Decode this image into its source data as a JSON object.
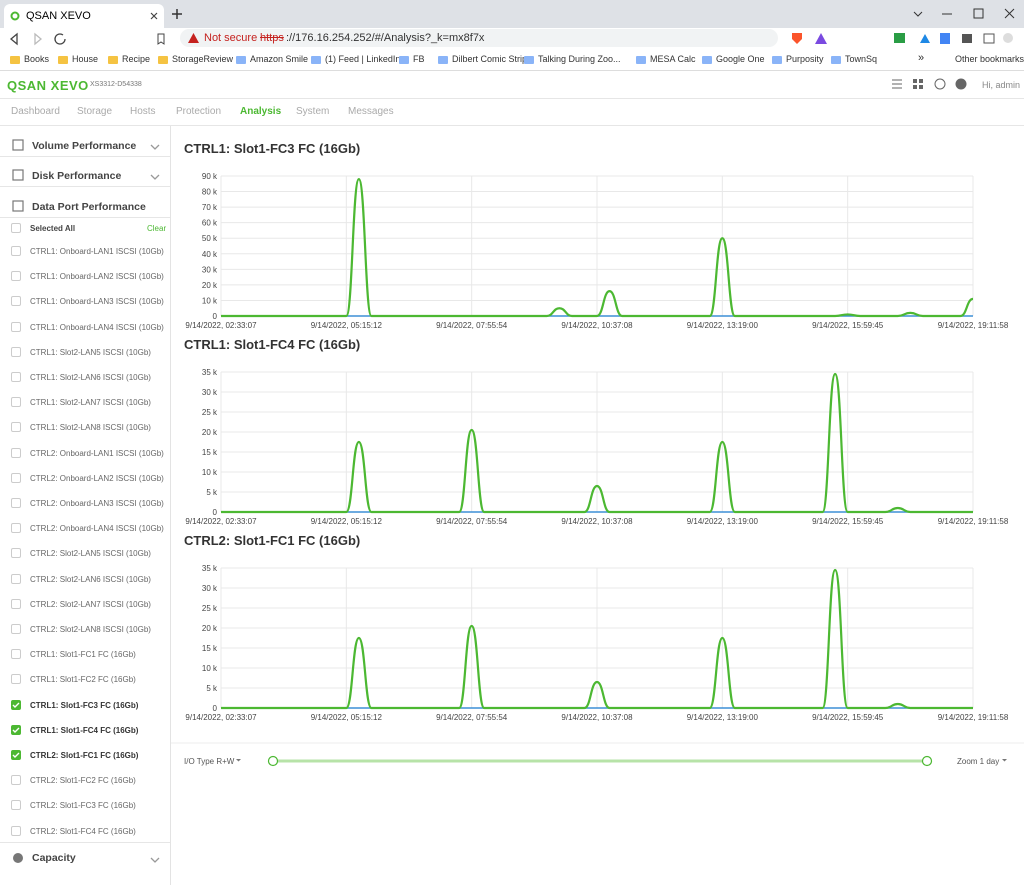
{
  "browser": {
    "tab_title": "QSAN XEVO",
    "not_secure": "Not secure",
    "url_scheme": "https",
    "url_rest": "://176.16.254.252/#/Analysis?_k=mx8f7x",
    "bookmarks": [
      "Books",
      "House",
      "Recipe",
      "StorageReview",
      "Amazon Smile",
      "(1) Feed | LinkedIn",
      "FB",
      "Dilbert Comic Strip...",
      "Talking During Zoo...",
      "MESA Calc",
      "Google One",
      "Purposity",
      "TownSq"
    ],
    "more": "»",
    "other_bookmarks": "Other bookmarks"
  },
  "app": {
    "logo": "QSAN XEVO",
    "model": "XS3312-D54338",
    "user": "Hi, admin",
    "nav": [
      "Dashboard",
      "Storage",
      "Hosts",
      "Protection",
      "Analysis",
      "System",
      "Messages"
    ],
    "active_nav": 4
  },
  "sidebar": {
    "sections": [
      "Volume Performance",
      "Disk Performance",
      "Data Port Performance"
    ],
    "select_all": "Selected All",
    "clear": "Clear",
    "items": [
      {
        "label": "CTRL1: Onboard-LAN1 ISCSI (10Gb)",
        "checked": false
      },
      {
        "label": "CTRL1: Onboard-LAN2 ISCSI (10Gb)",
        "checked": false
      },
      {
        "label": "CTRL1: Onboard-LAN3 ISCSI (10Gb)",
        "checked": false
      },
      {
        "label": "CTRL1: Onboard-LAN4 ISCSI (10Gb)",
        "checked": false
      },
      {
        "label": "CTRL1: Slot2-LAN5 ISCSI (10Gb)",
        "checked": false
      },
      {
        "label": "CTRL1: Slot2-LAN6 ISCSI (10Gb)",
        "checked": false
      },
      {
        "label": "CTRL1: Slot2-LAN7 ISCSI (10Gb)",
        "checked": false
      },
      {
        "label": "CTRL1: Slot2-LAN8 ISCSI (10Gb)",
        "checked": false
      },
      {
        "label": "CTRL2: Onboard-LAN1 ISCSI (10Gb)",
        "checked": false
      },
      {
        "label": "CTRL2: Onboard-LAN2 ISCSI (10Gb)",
        "checked": false
      },
      {
        "label": "CTRL2: Onboard-LAN3 ISCSI (10Gb)",
        "checked": false
      },
      {
        "label": "CTRL2: Onboard-LAN4 ISCSI (10Gb)",
        "checked": false
      },
      {
        "label": "CTRL2: Slot2-LAN5 ISCSI (10Gb)",
        "checked": false
      },
      {
        "label": "CTRL2: Slot2-LAN6 ISCSI (10Gb)",
        "checked": false
      },
      {
        "label": "CTRL2: Slot2-LAN7 ISCSI (10Gb)",
        "checked": false
      },
      {
        "label": "CTRL2: Slot2-LAN8 ISCSI (10Gb)",
        "checked": false
      },
      {
        "label": "CTRL1: Slot1-FC1 FC (16Gb)",
        "checked": false
      },
      {
        "label": "CTRL1: Slot1-FC2 FC (16Gb)",
        "checked": false
      },
      {
        "label": "CTRL1: Slot1-FC3 FC (16Gb)",
        "checked": true
      },
      {
        "label": "CTRL1: Slot1-FC4 FC (16Gb)",
        "checked": true
      },
      {
        "label": "CTRL2: Slot1-FC1 FC (16Gb)",
        "checked": true
      },
      {
        "label": "CTRL2: Slot1-FC2 FC (16Gb)",
        "checked": false
      },
      {
        "label": "CTRL2: Slot1-FC3 FC (16Gb)",
        "checked": false
      },
      {
        "label": "CTRL2: Slot1-FC4 FC (16Gb)",
        "checked": false
      }
    ],
    "capacity": "Capacity"
  },
  "controls": {
    "io_type": "I/O Type R+W",
    "zoom": "Zoom 1 day"
  },
  "chart_data": [
    {
      "type": "line",
      "title": "CTRL1: Slot1-FC3 FC (16Gb)",
      "categories": [
        "9/14/2022, 02:33:07",
        null,
        null,
        null,
        null,
        null,
        null,
        null,
        null,
        null,
        "9/14/2022, 05:15:12",
        null,
        null,
        null,
        null,
        null,
        null,
        null,
        null,
        null,
        "9/14/2022, 07:55:54",
        null,
        null,
        null,
        null,
        null,
        null,
        null,
        null,
        null,
        "9/14/2022, 10:37:08",
        null,
        null,
        null,
        null,
        null,
        null,
        null,
        null,
        null,
        "9/14/2022, 13:19:00",
        null,
        null,
        null,
        null,
        null,
        null,
        null,
        null,
        null,
        "9/14/2022, 15:59:45",
        null,
        null,
        null,
        null,
        null,
        null,
        null,
        null,
        null,
        "9/14/2022, 19:11:58"
      ],
      "series": [
        {
          "color": "#4cb832",
          "values": [
            0,
            0,
            0,
            0,
            0,
            0,
            0,
            0,
            0,
            0,
            0,
            88000,
            0,
            0,
            0,
            0,
            0,
            0,
            0,
            0,
            0,
            0,
            0,
            0,
            0,
            0,
            0,
            5000,
            0,
            0,
            0,
            16000,
            0,
            0,
            0,
            0,
            0,
            0,
            0,
            0,
            50000,
            0,
            0,
            0,
            0,
            0,
            0,
            0,
            0,
            0,
            1000,
            0,
            0,
            0,
            0,
            2000,
            0,
            0,
            0,
            0,
            11000
          ]
        },
        {
          "color": "#3d8fd6",
          "values": [
            0,
            0,
            0,
            0,
            0,
            0,
            0,
            0,
            0,
            0,
            0,
            0,
            0,
            0,
            0,
            0,
            0,
            0,
            0,
            0,
            0,
            0,
            0,
            0,
            0,
            0,
            0,
            0,
            0,
            0,
            0,
            0,
            0,
            0,
            0,
            0,
            0,
            0,
            0,
            0,
            0,
            0,
            0,
            0,
            0,
            0,
            0,
            0,
            0,
            0,
            0,
            0,
            0,
            0,
            0,
            0,
            0,
            0,
            0,
            0,
            0
          ]
        }
      ],
      "ylim": [
        0,
        90000
      ],
      "yticks": [
        0,
        {
          "value": 10000,
          "label": "10 k"
        },
        {
          "value": 20000,
          "label": "20 k"
        },
        {
          "value": 30000,
          "label": "30 k"
        },
        {
          "value": 40000,
          "label": "40 k"
        },
        {
          "value": 50000,
          "label": "50 k"
        },
        {
          "value": 60000,
          "label": "60 k"
        },
        {
          "value": 70000,
          "label": "70 k"
        },
        {
          "value": 80000,
          "label": "80 k"
        },
        {
          "value": 90000,
          "label": "90 k"
        }
      ],
      "grid": true
    },
    {
      "type": "line",
      "title": "CTRL1: Slot1-FC4 FC (16Gb)",
      "categories": [
        "9/14/2022, 02:33:07",
        null,
        null,
        null,
        null,
        null,
        null,
        null,
        null,
        null,
        "9/14/2022, 05:15:12",
        null,
        null,
        null,
        null,
        null,
        null,
        null,
        null,
        null,
        "9/14/2022, 07:55:54",
        null,
        null,
        null,
        null,
        null,
        null,
        null,
        null,
        null,
        "9/14/2022, 10:37:08",
        null,
        null,
        null,
        null,
        null,
        null,
        null,
        null,
        null,
        "9/14/2022, 13:19:00",
        null,
        null,
        null,
        null,
        null,
        null,
        null,
        null,
        null,
        "9/14/2022, 15:59:45",
        null,
        null,
        null,
        null,
        null,
        null,
        null,
        null,
        null,
        "9/14/2022, 19:11:58"
      ],
      "series": [
        {
          "color": "#4cb832",
          "values": [
            0,
            0,
            0,
            0,
            0,
            0,
            0,
            0,
            0,
            0,
            0,
            17500,
            0,
            0,
            0,
            0,
            0,
            0,
            0,
            0,
            20500,
            0,
            0,
            0,
            0,
            0,
            0,
            0,
            0,
            0,
            6500,
            0,
            0,
            0,
            0,
            0,
            0,
            0,
            0,
            0,
            17500,
            0,
            0,
            0,
            0,
            0,
            0,
            0,
            0,
            34500,
            0,
            0,
            0,
            0,
            1000,
            0,
            0,
            0,
            0,
            0,
            0
          ]
        },
        {
          "color": "#3d8fd6",
          "values": [
            0,
            0,
            0,
            0,
            0,
            0,
            0,
            0,
            0,
            0,
            0,
            0,
            0,
            0,
            0,
            0,
            0,
            0,
            0,
            0,
            0,
            0,
            0,
            0,
            0,
            0,
            0,
            0,
            0,
            0,
            0,
            0,
            0,
            0,
            0,
            0,
            0,
            0,
            0,
            0,
            0,
            0,
            0,
            0,
            0,
            0,
            0,
            0,
            0,
            0,
            0,
            0,
            0,
            0,
            0,
            0,
            0,
            0,
            0,
            0,
            0
          ]
        }
      ],
      "ylim": [
        0,
        35000
      ],
      "yticks": [
        0,
        {
          "value": 5000,
          "label": "5 k"
        },
        {
          "value": 10000,
          "label": "10 k"
        },
        {
          "value": 15000,
          "label": "15 k"
        },
        {
          "value": 20000,
          "label": "20 k"
        },
        {
          "value": 25000,
          "label": "25 k"
        },
        {
          "value": 30000,
          "label": "30 k"
        },
        {
          "value": 35000,
          "label": "35 k"
        }
      ],
      "grid": true
    },
    {
      "type": "line",
      "title": "CTRL2: Slot1-FC1 FC (16Gb)",
      "categories": [
        "9/14/2022, 02:33:07",
        null,
        null,
        null,
        null,
        null,
        null,
        null,
        null,
        null,
        "9/14/2022, 05:15:12",
        null,
        null,
        null,
        null,
        null,
        null,
        null,
        null,
        null,
        "9/14/2022, 07:55:54",
        null,
        null,
        null,
        null,
        null,
        null,
        null,
        null,
        null,
        "9/14/2022, 10:37:08",
        null,
        null,
        null,
        null,
        null,
        null,
        null,
        null,
        null,
        "9/14/2022, 13:19:00",
        null,
        null,
        null,
        null,
        null,
        null,
        null,
        null,
        null,
        "9/14/2022, 15:59:45",
        null,
        null,
        null,
        null,
        null,
        null,
        null,
        null,
        null,
        "9/14/2022, 19:11:58"
      ],
      "series": [
        {
          "color": "#4cb832",
          "values": [
            0,
            0,
            0,
            0,
            0,
            0,
            0,
            0,
            0,
            0,
            0,
            17500,
            0,
            0,
            0,
            0,
            0,
            0,
            0,
            0,
            20500,
            0,
            0,
            0,
            0,
            0,
            0,
            0,
            0,
            0,
            6500,
            0,
            0,
            0,
            0,
            0,
            0,
            0,
            0,
            0,
            17500,
            0,
            0,
            0,
            0,
            0,
            0,
            0,
            0,
            34500,
            0,
            0,
            0,
            0,
            1000,
            0,
            0,
            0,
            0,
            0,
            0
          ]
        },
        {
          "color": "#3d8fd6",
          "values": [
            0,
            0,
            0,
            0,
            0,
            0,
            0,
            0,
            0,
            0,
            0,
            0,
            0,
            0,
            0,
            0,
            0,
            0,
            0,
            0,
            0,
            0,
            0,
            0,
            0,
            0,
            0,
            0,
            0,
            0,
            0,
            0,
            0,
            0,
            0,
            0,
            0,
            0,
            0,
            0,
            0,
            0,
            0,
            0,
            0,
            0,
            0,
            0,
            0,
            0,
            0,
            0,
            0,
            0,
            0,
            0,
            0,
            0,
            0,
            0,
            0
          ]
        }
      ],
      "ylim": [
        0,
        35000
      ],
      "yticks": [
        0,
        {
          "value": 5000,
          "label": "5 k"
        },
        {
          "value": 10000,
          "label": "10 k"
        },
        {
          "value": 15000,
          "label": "15 k"
        },
        {
          "value": 20000,
          "label": "20 k"
        },
        {
          "value": 25000,
          "label": "25 k"
        },
        {
          "value": 30000,
          "label": "30 k"
        },
        {
          "value": 35000,
          "label": "35 k"
        }
      ],
      "grid": true
    }
  ]
}
